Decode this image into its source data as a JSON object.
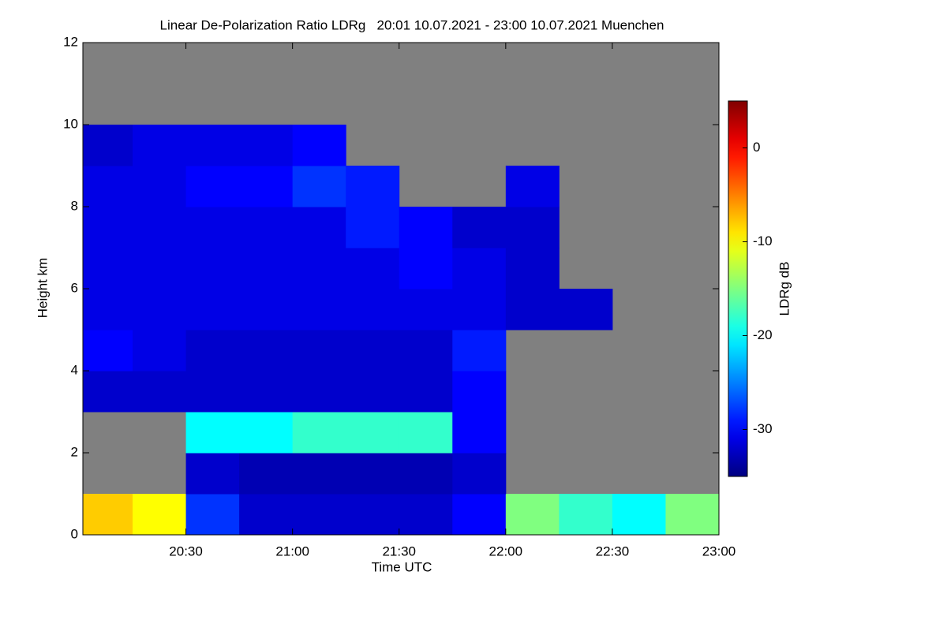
{
  "chart_data": {
    "type": "heatmap",
    "title": "Linear De-Polarization Ratio LDRg   20:01 10.07.2021 - 23:00 10.07.2021 Muenchen",
    "x_label": "Time UTC",
    "y_label": "Height km",
    "colorbar_label": "LDRg dB",
    "colormap": "jet",
    "missing_color": "#808080",
    "xbins": [
      20.0167,
      20.25,
      20.5,
      20.75,
      21.0,
      21.25,
      21.5,
      21.75,
      22.0,
      22.25,
      22.5,
      22.75,
      23.0
    ],
    "ybins": [
      0,
      1,
      2,
      3,
      4,
      5,
      6,
      7,
      8,
      9,
      10,
      11,
      12
    ],
    "z": [
      [
        -8,
        -10,
        -28,
        -32,
        -32,
        -32,
        -32,
        -30,
        -15,
        -18,
        -20,
        -15
      ],
      [
        null,
        null,
        -32,
        -33,
        -33,
        -33,
        -33,
        -32,
        null,
        null,
        null,
        null
      ],
      [
        null,
        null,
        -20,
        -20,
        -18,
        -18,
        -18,
        -30,
        null,
        null,
        null,
        null
      ],
      [
        -32,
        -32,
        -32,
        -32,
        -32,
        -32,
        -32,
        -30,
        null,
        null,
        null,
        null
      ],
      [
        -30,
        -31,
        -32,
        -32,
        -32,
        -32,
        -32,
        -29,
        null,
        null,
        null,
        null
      ],
      [
        -31,
        -31,
        -31,
        -31,
        -31,
        -31,
        -31,
        -31,
        -32,
        -32,
        null,
        null
      ],
      [
        -31,
        -31,
        -31,
        -31,
        -31,
        -31,
        -30,
        -31,
        -32,
        null,
        null,
        null
      ],
      [
        -31,
        -31,
        -31,
        -31,
        -31,
        -29,
        -30,
        -32,
        -32,
        null,
        null,
        null
      ],
      [
        -31,
        -31,
        -30,
        -30,
        -28,
        -29,
        null,
        null,
        -31,
        null,
        null,
        null
      ],
      [
        -32,
        -31,
        -31,
        -31,
        -30,
        null,
        null,
        null,
        null,
        null,
        null,
        null
      ],
      [
        null,
        null,
        null,
        null,
        null,
        null,
        null,
        null,
        null,
        null,
        null,
        null
      ],
      [
        null,
        null,
        null,
        null,
        null,
        null,
        null,
        null,
        null,
        null,
        null,
        null
      ]
    ],
    "xlim": [
      20.0167,
      23.0
    ],
    "xticks": [
      {
        "value": 20.5,
        "label": "20:30"
      },
      {
        "value": 21.0,
        "label": "21:00"
      },
      {
        "value": 21.5,
        "label": "21:30"
      },
      {
        "value": 22.0,
        "label": "22:00"
      },
      {
        "value": 22.5,
        "label": "22:30"
      },
      {
        "value": 23.0,
        "label": "23:00"
      }
    ],
    "ylim": [
      0,
      12
    ],
    "yticks": [
      0,
      2,
      4,
      6,
      8,
      10,
      12
    ],
    "zlim": [
      -35,
      5
    ],
    "zticks": [
      -30,
      -20,
      -10,
      0
    ]
  }
}
